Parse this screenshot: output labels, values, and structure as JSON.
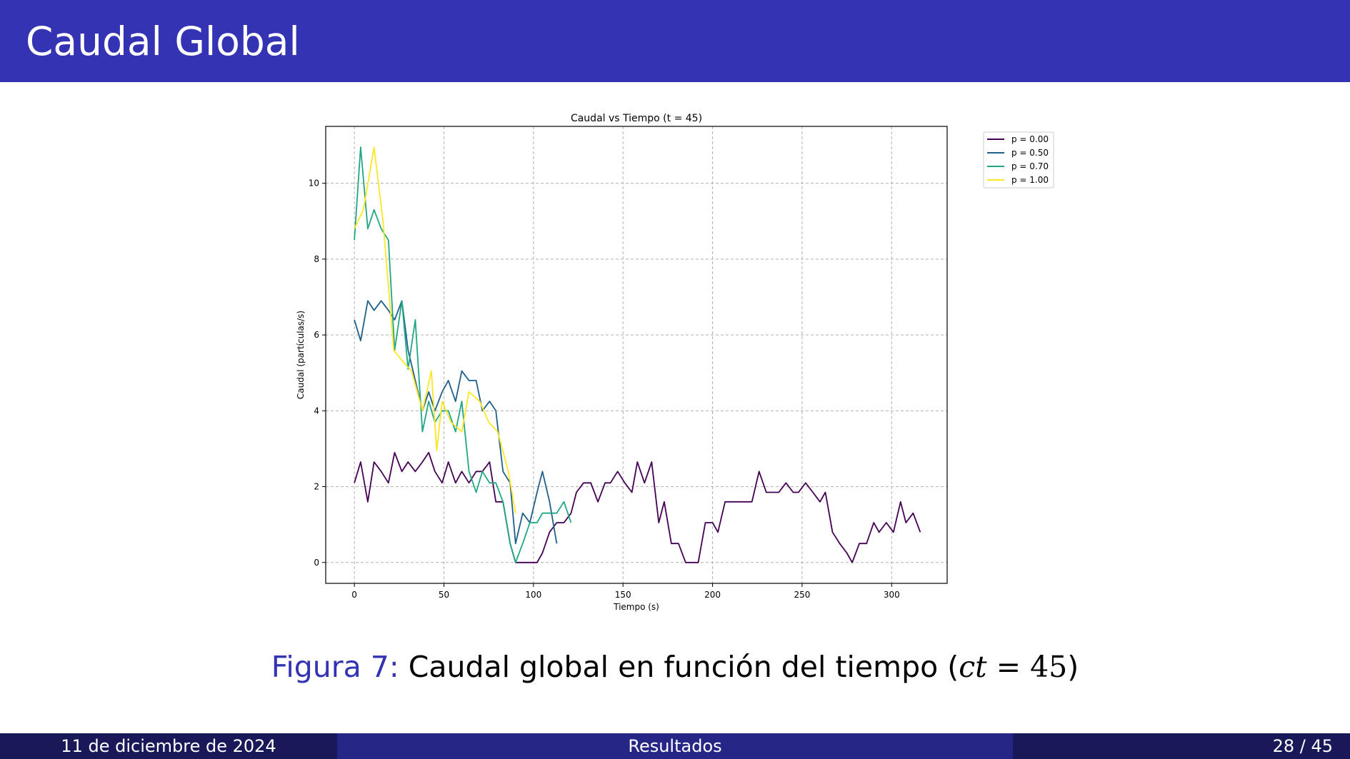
{
  "slide": {
    "title": "Caudal Global",
    "header_color": "#3333b3"
  },
  "caption": {
    "label": "Figura 7:",
    "text": "Caudal global en función del tiempo (",
    "math_var": "ct",
    "math_rest": " = 45",
    "close": ")"
  },
  "footer": {
    "date": "11 de diciembre de 2024",
    "section": "Resultados",
    "page": "28 / 45"
  },
  "chart_data": {
    "type": "line",
    "title": "Caudal vs Tiempo (t = 45)",
    "xlabel": "Tiempo (s)",
    "ylabel": "Caudal (partículas/s)",
    "xlim": [
      -16,
      331
    ],
    "ylim": [
      -0.55,
      11.5
    ],
    "xticks": [
      0,
      50,
      100,
      150,
      200,
      250,
      300
    ],
    "yticks": [
      0,
      2,
      4,
      6,
      8,
      10
    ],
    "grid": true,
    "legend_position": "outside-top-right",
    "series": [
      {
        "name": "p = 0.00",
        "color": "#440154",
        "x": [
          0,
          3.5,
          7.5,
          11,
          15,
          19,
          22.5,
          26.5,
          30,
          34,
          38,
          41.5,
          45,
          49,
          52.5,
          56.5,
          60,
          64,
          68,
          71.5,
          75.5,
          79,
          83,
          87,
          90,
          94,
          98,
          102,
          105,
          109,
          113,
          117,
          121,
          124,
          128,
          132,
          136,
          140,
          143,
          147,
          151,
          155,
          158,
          162,
          166,
          170,
          173,
          177,
          181,
          185,
          188,
          192,
          196,
          200,
          203,
          207,
          211,
          215,
          218,
          222,
          226,
          230,
          233,
          237,
          241,
          245,
          248,
          252,
          256,
          260,
          263,
          267,
          271,
          275,
          278,
          282,
          286,
          290,
          293,
          297,
          301,
          305,
          308,
          312,
          316
        ],
        "y": [
          2.1,
          2.65,
          1.6,
          2.65,
          2.4,
          2.1,
          2.9,
          2.4,
          2.65,
          2.4,
          2.65,
          2.9,
          2.4,
          2.1,
          2.65,
          2.1,
          2.4,
          2.1,
          2.4,
          2.4,
          2.65,
          1.6,
          1.6,
          0.5,
          0,
          0,
          0,
          0,
          0.25,
          0.8,
          1.05,
          1.05,
          1.3,
          1.85,
          2.1,
          2.1,
          1.6,
          2.1,
          2.1,
          2.4,
          2.1,
          1.85,
          2.65,
          2.1,
          2.65,
          1.05,
          1.6,
          0.5,
          0.5,
          0,
          0,
          0,
          1.05,
          1.05,
          0.8,
          1.6,
          1.6,
          1.6,
          1.6,
          1.6,
          2.4,
          1.85,
          1.85,
          1.85,
          2.1,
          1.85,
          1.85,
          2.1,
          1.85,
          1.6,
          1.85,
          0.8,
          0.5,
          0.25,
          0,
          0.5,
          0.5,
          1.05,
          0.8,
          1.05,
          0.8,
          1.6,
          1.05,
          1.3,
          0.8
        ]
      },
      {
        "name": "p = 0.50",
        "color": "#1f5f8b",
        "x": [
          0,
          3.5,
          7.5,
          11,
          15,
          19,
          22.5,
          26.5,
          30,
          34,
          38,
          41.5,
          45,
          49,
          52.5,
          56.5,
          60,
          64,
          68,
          71.5,
          75.5,
          79,
          83,
          87,
          90,
          94,
          98,
          102,
          105,
          109,
          113
        ],
        "y": [
          6.4,
          5.85,
          6.9,
          6.65,
          6.9,
          6.65,
          6.4,
          6.9,
          5.6,
          4.8,
          4.0,
          4.5,
          4.0,
          4.5,
          4.8,
          4.25,
          5.05,
          4.8,
          4.8,
          4.0,
          4.25,
          4.0,
          2.4,
          2.1,
          0.5,
          1.3,
          1.05,
          1.85,
          2.4,
          1.6,
          0.5
        ]
      },
      {
        "name": "p = 0.70",
        "color": "#21a685",
        "x": [
          0,
          3.5,
          7.5,
          11,
          15,
          19,
          22.5,
          26.5,
          30,
          34,
          38,
          41.5,
          45,
          49,
          52.5,
          56.5,
          60,
          64,
          68,
          71.5,
          75.5,
          79,
          83,
          87,
          90,
          94,
          98,
          102,
          105,
          109,
          113,
          117,
          121
        ],
        "y": [
          8.5,
          10.95,
          8.8,
          9.3,
          8.8,
          8.5,
          5.6,
          6.9,
          5.1,
          6.4,
          3.45,
          4.25,
          3.7,
          4.0,
          4.0,
          3.45,
          4.25,
          2.4,
          1.85,
          2.4,
          2.1,
          2.1,
          1.6,
          0.5,
          0,
          0.5,
          1.05,
          1.05,
          1.3,
          1.3,
          1.3,
          1.6,
          1.05
        ]
      },
      {
        "name": "p = 1.00",
        "color": "#fde725",
        "x": [
          0,
          5,
          11,
          16,
          22,
          27,
          32,
          38,
          43,
          46,
          49,
          54,
          60,
          64,
          70,
          75,
          80,
          86,
          90
        ],
        "y": [
          8.8,
          9.3,
          10.95,
          9.0,
          5.6,
          5.3,
          5.05,
          4.0,
          5.05,
          2.95,
          4.25,
          3.7,
          3.45,
          4.5,
          4.25,
          3.7,
          3.45,
          2.4,
          1.3
        ]
      }
    ]
  }
}
